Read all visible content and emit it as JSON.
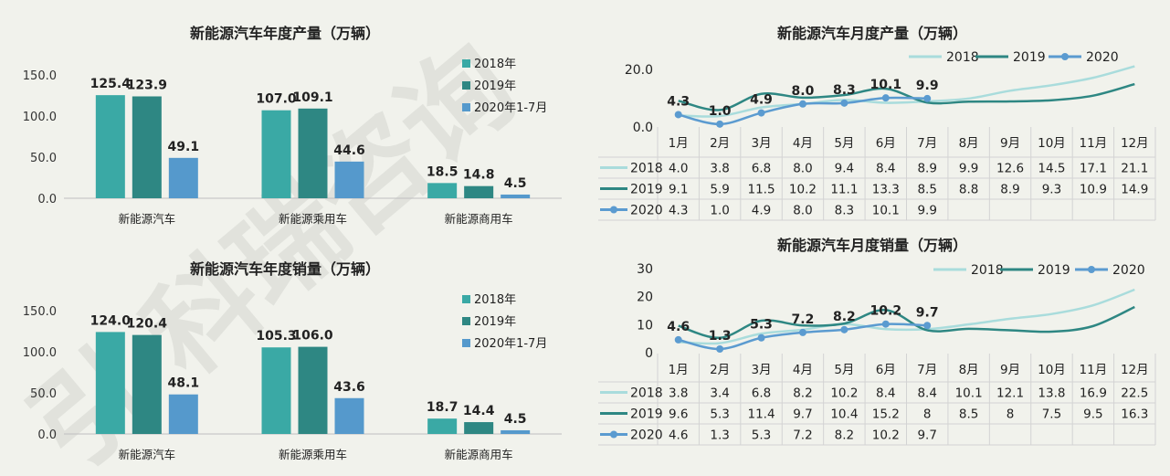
{
  "watermark": "引 科瑞咨询",
  "colors": {
    "c2018": "#3aa9a5",
    "c2019": "#2e8783",
    "c2020": "#5599cc",
    "line2018": "#a9dcdc",
    "line2019": "#2e8783",
    "line2020": "#5b9bd0"
  },
  "chart_data": [
    {
      "id": "annual-production",
      "type": "bar",
      "title": "新能源汽车年度产量（万辆）",
      "categories": [
        "新能源汽车",
        "新能源乘用车",
        "新能源商用车"
      ],
      "series": [
        {
          "name": "2018年",
          "values": [
            125.4,
            107.0,
            18.5
          ]
        },
        {
          "name": "2019年",
          "values": [
            123.9,
            109.1,
            14.8
          ]
        },
        {
          "name": "2020年1-7月",
          "values": [
            49.1,
            44.6,
            4.5
          ]
        }
      ],
      "yticks": [
        "0.0",
        "50.0",
        "100.0",
        "150.0"
      ],
      "ylim": [
        0,
        150
      ],
      "legend": "right"
    },
    {
      "id": "annual-sales",
      "type": "bar",
      "title": "新能源汽车年度销量（万辆）",
      "categories": [
        "新能源汽车",
        "新能源乘用车",
        "新能源商用车"
      ],
      "series": [
        {
          "name": "2018年",
          "values": [
            124.0,
            105.3,
            18.7
          ]
        },
        {
          "name": "2019年",
          "values": [
            120.4,
            106.0,
            14.4
          ]
        },
        {
          "name": "2020年1-7月",
          "values": [
            48.1,
            43.6,
            4.5
          ]
        }
      ],
      "yticks": [
        "0.0",
        "50.0",
        "100.0",
        "150.0"
      ],
      "ylim": [
        0,
        150
      ],
      "legend": "right"
    },
    {
      "id": "monthly-production",
      "type": "line",
      "title": "新能源汽车月度产量（万辆）",
      "categories": [
        "1月",
        "2月",
        "3月",
        "4月",
        "5月",
        "6月",
        "7月",
        "8月",
        "9月",
        "10月",
        "11月",
        "12月"
      ],
      "series": [
        {
          "name": "2018",
          "values": [
            "4.0",
            "3.8",
            "6.8",
            "8.0",
            "9.4",
            "8.4",
            "8.9",
            "9.9",
            "12.6",
            "14.5",
            "17.1",
            "21.1"
          ]
        },
        {
          "name": "2019",
          "values": [
            "9.1",
            "5.9",
            "11.5",
            "10.2",
            "11.1",
            "13.3",
            "8.5",
            "8.8",
            "8.9",
            "9.3",
            "10.9",
            "14.9"
          ]
        },
        {
          "name": "2020",
          "values": [
            "4.3",
            "1.0",
            "4.9",
            "8.0",
            "8.3",
            "10.1",
            "9.9",
            "",
            "",
            "",
            "",
            ""
          ]
        }
      ],
      "data_labels_series": "2020",
      "yticks": [
        "0.0",
        "20.0"
      ],
      "ylim": [
        0,
        20
      ],
      "legend": "top"
    },
    {
      "id": "monthly-sales",
      "type": "line",
      "title": "新能源汽车月度销量（万辆）",
      "categories": [
        "1月",
        "2月",
        "3月",
        "4月",
        "5月",
        "6月",
        "7月",
        "8月",
        "9月",
        "10月",
        "11月",
        "12月"
      ],
      "series": [
        {
          "name": "2018",
          "values": [
            "3.8",
            "3.4",
            "6.8",
            "8.2",
            "10.2",
            "8.4",
            "8.4",
            "10.1",
            "12.1",
            "13.8",
            "16.9",
            "22.5"
          ]
        },
        {
          "name": "2019",
          "values": [
            "9.6",
            "5.3",
            "11.4",
            "9.7",
            "10.4",
            "15.2",
            "8",
            "8.5",
            "8",
            "7.5",
            "9.5",
            "16.3"
          ]
        },
        {
          "name": "2020",
          "values": [
            "4.6",
            "1.3",
            "5.3",
            "7.2",
            "8.2",
            "10.2",
            "9.7",
            "",
            "",
            "",
            "",
            ""
          ]
        }
      ],
      "data_labels_series": "2020",
      "yticks": [
        "0",
        "10",
        "20",
        "30"
      ],
      "ylim": [
        0,
        30
      ],
      "legend": "top"
    }
  ]
}
